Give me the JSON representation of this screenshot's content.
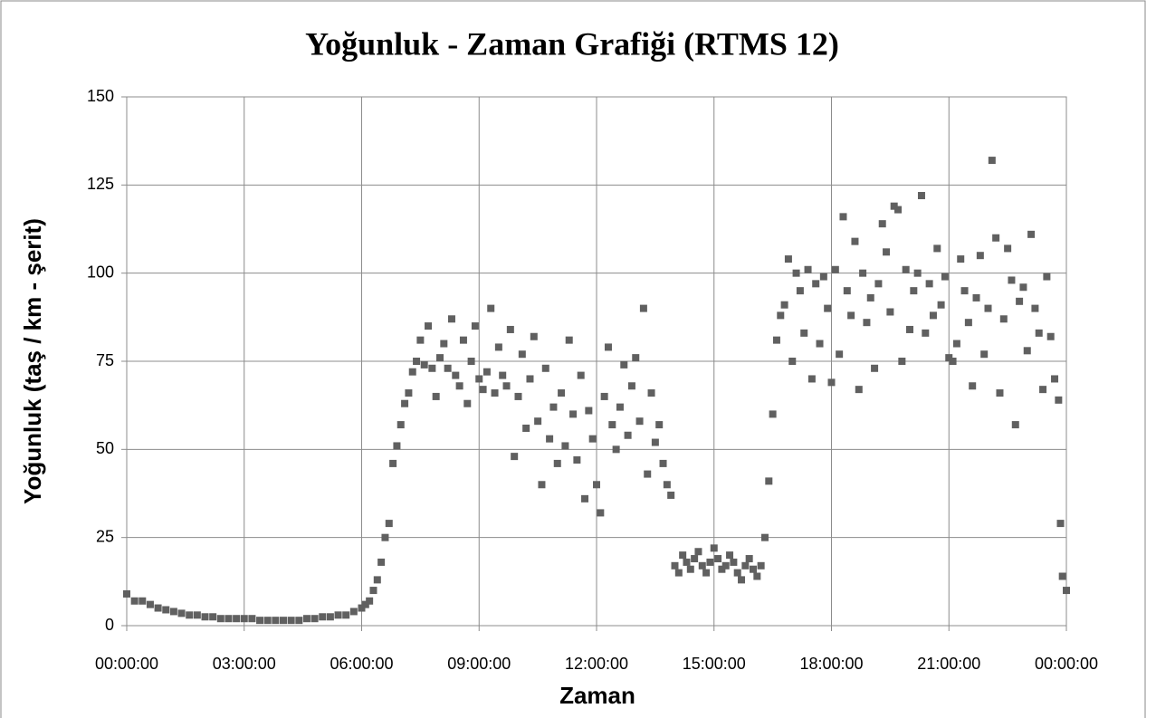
{
  "chart_data": {
    "type": "scatter",
    "title": "Yoğunluk - Zaman Grafiği (RTMS 12)",
    "x_label": "Zaman",
    "y_label": "Yoğunluk (taş / km - şerit)",
    "color": "#606060",
    "grid": true,
    "xlim": [
      0,
      24
    ],
    "ylim": [
      0,
      150
    ],
    "xticks": [
      {
        "value": 0,
        "label": "00:00:00"
      },
      {
        "value": 3,
        "label": "03:00:00"
      },
      {
        "value": 6,
        "label": "06:00:00"
      },
      {
        "value": 9,
        "label": "09:00:00"
      },
      {
        "value": 12,
        "label": "12:00:00"
      },
      {
        "value": 15,
        "label": "15:00:00"
      },
      {
        "value": 18,
        "label": "18:00:00"
      },
      {
        "value": 21,
        "label": "21:00:00"
      },
      {
        "value": 24,
        "label": "00:00:00"
      }
    ],
    "yticks": [
      0,
      25,
      50,
      75,
      100,
      125,
      150
    ],
    "x": [
      0,
      0.2,
      0.4,
      0.6,
      0.8,
      1,
      1.2,
      1.4,
      1.6,
      1.8,
      2,
      2.2,
      2.4,
      2.6,
      2.8,
      3,
      3.2,
      3.4,
      3.6,
      3.8,
      4,
      4.2,
      4.4,
      4.6,
      4.8,
      5,
      5.2,
      5.4,
      5.6,
      5.8,
      6,
      6.1,
      6.2,
      6.3,
      6.4,
      6.5,
      6.6,
      6.7,
      6.8,
      6.9,
      7,
      7.1,
      7.2,
      7.3,
      7.4,
      7.5,
      7.6,
      7.7,
      7.8,
      7.9,
      8,
      8.1,
      8.2,
      8.3,
      8.4,
      8.5,
      8.6,
      8.7,
      8.8,
      8.9,
      9,
      9.1,
      9.2,
      9.3,
      9.4,
      9.5,
      9.6,
      9.7,
      9.8,
      9.9,
      10,
      10.1,
      10.2,
      10.3,
      10.4,
      10.5,
      10.6,
      10.7,
      10.8,
      10.9,
      11,
      11.1,
      11.2,
      11.3,
      11.4,
      11.5,
      11.6,
      11.7,
      11.8,
      11.9,
      12,
      12.1,
      12.2,
      12.3,
      12.4,
      12.5,
      12.6,
      12.7,
      12.8,
      12.9,
      13,
      13.1,
      13.2,
      13.3,
      13.4,
      13.5,
      13.6,
      13.7,
      13.8,
      13.9,
      14,
      14.1,
      14.2,
      14.3,
      14.4,
      14.5,
      14.6,
      14.7,
      14.8,
      14.9,
      15,
      15.1,
      15.2,
      15.3,
      15.4,
      15.5,
      15.6,
      15.7,
      15.8,
      15.9,
      16,
      16.1,
      16.2,
      16.3,
      16.4,
      16.5,
      16.6,
      16.7,
      16.8,
      16.9,
      17,
      17.1,
      17.2,
      17.3,
      17.4,
      17.5,
      17.6,
      17.7,
      17.8,
      17.9,
      18,
      18.1,
      18.2,
      18.3,
      18.4,
      18.5,
      18.6,
      18.7,
      18.8,
      18.9,
      19,
      19.1,
      19.2,
      19.3,
      19.4,
      19.5,
      19.6,
      19.7,
      19.8,
      19.9,
      20,
      20.1,
      20.2,
      20.3,
      20.4,
      20.5,
      20.6,
      20.7,
      20.8,
      20.9,
      21,
      21.1,
      21.2,
      21.3,
      21.4,
      21.5,
      21.6,
      21.7,
      21.8,
      21.9,
      22,
      22.1,
      22.2,
      22.3,
      22.4,
      22.5,
      22.6,
      22.7,
      22.8,
      22.9,
      23,
      23.1,
      23.2,
      23.3,
      23.4,
      23.5,
      23.6,
      23.7,
      23.8,
      23.85,
      23.9,
      24
    ],
    "values": [
      9,
      7,
      7,
      6,
      5,
      4.5,
      4,
      3.5,
      3,
      3,
      2.5,
      2.5,
      2,
      2,
      2,
      2,
      2,
      1.5,
      1.5,
      1.5,
      1.5,
      1.5,
      1.5,
      2,
      2,
      2.5,
      2.5,
      3,
      3,
      4,
      5,
      6,
      7,
      10,
      13,
      18,
      25,
      29,
      46,
      51,
      57,
      63,
      66,
      72,
      75,
      81,
      74,
      85,
      73,
      65,
      76,
      80,
      73,
      87,
      71,
      68,
      81,
      63,
      75,
      85,
      70,
      67,
      72,
      90,
      66,
      79,
      71,
      68,
      84,
      48,
      65,
      77,
      56,
      70,
      82,
      58,
      40,
      73,
      53,
      62,
      46,
      66,
      51,
      81,
      60,
      47,
      71,
      36,
      61,
      53,
      40,
      32,
      65,
      79,
      57,
      50,
      62,
      74,
      54,
      68,
      76,
      58,
      90,
      43,
      66,
      52,
      57,
      46,
      40,
      37,
      17,
      15,
      20,
      18,
      16,
      19,
      21,
      17,
      15,
      18,
      22,
      19,
      16,
      17,
      20,
      18,
      15,
      13,
      17,
      19,
      16,
      14,
      17,
      25,
      41,
      60,
      81,
      88,
      91,
      104,
      75,
      100,
      95,
      83,
      101,
      70,
      97,
      80,
      99,
      90,
      69,
      101,
      77,
      116,
      95,
      88,
      109,
      67,
      100,
      86,
      93,
      73,
      97,
      114,
      106,
      89,
      119,
      118,
      75,
      101,
      84,
      95,
      100,
      122,
      83,
      97,
      88,
      107,
      91,
      99,
      76,
      75,
      80,
      104,
      95,
      86,
      68,
      93,
      105,
      77,
      90,
      132,
      110,
      66,
      87,
      107,
      98,
      57,
      92,
      96,
      78,
      111,
      90,
      83,
      67,
      99,
      82,
      70,
      64,
      29,
      14,
      10
    ]
  }
}
